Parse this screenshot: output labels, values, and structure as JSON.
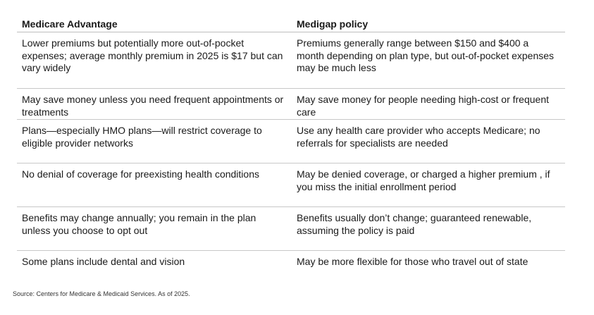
{
  "table": {
    "headers": [
      "Medicare Advantage",
      "Medigap policy"
    ],
    "rows": [
      [
        "Lower premiums but potentially more out-of-pocket expenses; average monthly premium in 2025 is $17 but can vary widely",
        "Premiums generally range between $150 and $400 a month depending on plan type, but out-of-pocket expenses may be much less"
      ],
      [
        "May save money unless you need frequent appointments or treatments",
        "May save money for people needing high-cost or frequent care"
      ],
      [
        "Plans—especially HMO plans—will restrict coverage to eligible provider networks",
        "Use any health care provider who accepts Medicare; no referrals for specialists are needed"
      ],
      [
        "No denial of coverage for preexisting health conditions",
        "May be denied coverage, or charged a higher premium , if you miss the initial enrollment period"
      ],
      [
        "Benefits may change annually; you remain in the plan unless you choose to opt out",
        "Benefits usually don’t change; guaranteed renewable, assuming the policy is paid"
      ],
      [
        "Some plans include dental and vision",
        "May be more flexible for those who travel out of state"
      ]
    ]
  },
  "source": "Source: Centers for Medicare & Medicaid Services. As of 2025."
}
